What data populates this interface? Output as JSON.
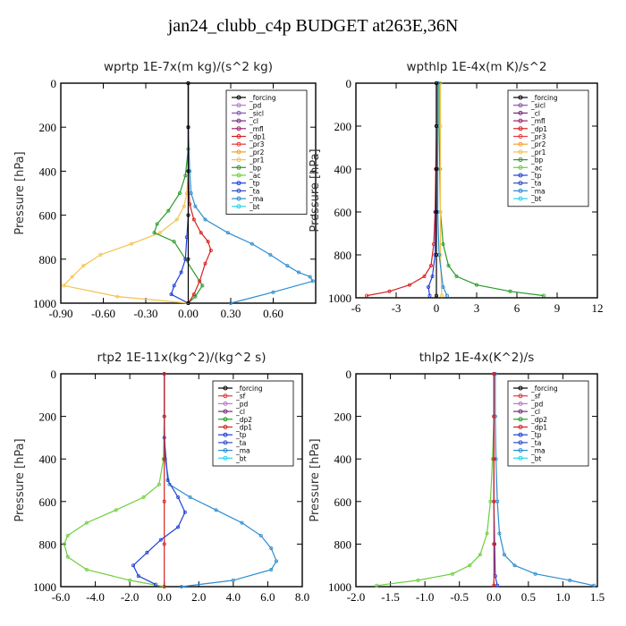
{
  "figure_title": "jan24_clubb_c4p  BUDGET at263E,36N",
  "chart_data": [
    {
      "type": "line",
      "title": "wprtp   1E-7x(m kg)/(s^2 kg)",
      "xlabel": "",
      "ylabel": "Pressure [hPa]",
      "xlim": [
        -0.9,
        0.9
      ],
      "ylim": [
        1000,
        0
      ],
      "xticks": [
        -0.9,
        -0.6,
        -0.3,
        0.0,
        0.3,
        0.6
      ],
      "xtick_labels": [
        "-0.90",
        "-0.60",
        "-0.30",
        "0.00",
        "0.30",
        "0.60"
      ],
      "yticks": [
        0,
        200,
        400,
        600,
        800,
        1000
      ],
      "legend_position": "top-right",
      "legend": [
        "_forcing",
        "_pd",
        "_sicl",
        "_cl",
        "_mfl",
        "_dp1",
        "_pr3",
        "_pr2",
        "_pr1",
        "_bp",
        "_ac",
        "_tp",
        "_ta",
        "_ma",
        "_bt"
      ],
      "series": [
        {
          "name": "_pr1",
          "color": "#f3c24b",
          "x": [
            0,
            0,
            0,
            -0.01,
            -0.03,
            -0.08,
            -0.2,
            -0.4,
            -0.62,
            -0.74,
            -0.82,
            -0.88,
            -0.5,
            0
          ],
          "y": [
            0,
            200,
            400,
            500,
            560,
            620,
            680,
            730,
            780,
            830,
            880,
            920,
            970,
            1000
          ]
        },
        {
          "name": "_ma",
          "color": "#2b8cd0",
          "x": [
            0,
            0,
            0.01,
            0.02,
            0.05,
            0.12,
            0.28,
            0.45,
            0.58,
            0.7,
            0.78,
            0.86,
            0.88,
            0.6,
            0.3
          ],
          "y": [
            0,
            200,
            400,
            500,
            560,
            620,
            680,
            730,
            780,
            830,
            860,
            880,
            900,
            950,
            1000
          ]
        },
        {
          "name": "_bp",
          "color": "#2a9a2a",
          "x": [
            0,
            0,
            0,
            -0.02,
            -0.06,
            -0.14,
            -0.22,
            -0.24,
            -0.1,
            0.1,
            0.05,
            0
          ],
          "y": [
            0,
            200,
            300,
            420,
            500,
            580,
            640,
            680,
            720,
            920,
            970,
            1000
          ]
        },
        {
          "name": "_dp1",
          "color": "#d62020",
          "x": [
            0,
            0,
            0,
            0.01,
            0.04,
            0.09,
            0.14,
            0.16,
            0.12,
            0.08,
            0.04,
            0
          ],
          "y": [
            0,
            200,
            400,
            550,
            620,
            680,
            720,
            760,
            820,
            900,
            960,
            1000
          ]
        },
        {
          "name": "_tp",
          "color": "#1f3fd6",
          "x": [
            0,
            0,
            0,
            0,
            -0.01,
            -0.02,
            -0.05,
            -0.1,
            -0.12,
            0
          ],
          "y": [
            0,
            200,
            400,
            600,
            700,
            800,
            860,
            920,
            960,
            1000
          ]
        },
        {
          "name": "_forcing",
          "color": "#000000",
          "x": [
            0,
            0,
            0,
            0,
            0,
            0
          ],
          "y": [
            0,
            200,
            400,
            600,
            800,
            1000
          ]
        }
      ]
    },
    {
      "type": "line",
      "title": "wpthlp   1E-4x(m K)/s^2",
      "xlabel": "",
      "ylabel": "Pressure [hPa]",
      "xlim": [
        -6,
        12
      ],
      "ylim": [
        1000,
        0
      ],
      "xticks": [
        -6,
        -3,
        0,
        3,
        6,
        9,
        12
      ],
      "xtick_labels": [
        "-6",
        "-3",
        "0",
        "3",
        "6",
        "9",
        "12"
      ],
      "yticks": [
        0,
        200,
        400,
        600,
        800,
        1000
      ],
      "legend_position": "top-right",
      "legend": [
        "_forcing",
        "_sicl",
        "_cl",
        "_mfl",
        "_dp1",
        "_pr3",
        "_pr2",
        "_pr1",
        "_bp",
        "_ac",
        "_tp",
        "_ta",
        "_ma",
        "_bt"
      ],
      "series": [
        {
          "name": "_bp",
          "color": "#2a9a2a",
          "x": [
            0.2,
            0.2,
            0.25,
            0.3,
            0.5,
            0.9,
            1.5,
            3,
            5.5,
            8
          ],
          "y": [
            0,
            200,
            400,
            600,
            750,
            850,
            900,
            940,
            970,
            990
          ]
        },
        {
          "name": "_dp1",
          "color": "#d62020",
          "x": [
            0,
            0,
            -0.05,
            -0.1,
            -0.2,
            -0.4,
            -0.9,
            -2,
            -3.5,
            -5.2
          ],
          "y": [
            0,
            200,
            400,
            600,
            750,
            850,
            900,
            940,
            970,
            990
          ]
        },
        {
          "name": "_tp",
          "color": "#1f3fd6",
          "x": [
            0,
            0,
            0,
            -0.05,
            -0.1,
            -0.3,
            -0.6,
            -0.5
          ],
          "y": [
            0,
            200,
            400,
            600,
            800,
            900,
            950,
            990
          ]
        },
        {
          "name": "_pr1",
          "color": "#f3c24b",
          "x": [
            0.3,
            0.3,
            0.3,
            0.3,
            0.3,
            0.4
          ],
          "y": [
            0,
            200,
            400,
            600,
            800,
            990
          ]
        },
        {
          "name": "_ma",
          "color": "#2b8cd0",
          "x": [
            0.1,
            0.1,
            0.1,
            0.1,
            0.2,
            0.5,
            0.8
          ],
          "y": [
            0,
            200,
            400,
            600,
            800,
            950,
            990
          ]
        },
        {
          "name": "_forcing",
          "color": "#000000",
          "x": [
            0,
            0,
            0,
            0,
            0,
            0
          ],
          "y": [
            0,
            200,
            400,
            600,
            800,
            990
          ]
        }
      ]
    },
    {
      "type": "line",
      "title": "rtp2   1E-11x(kg^2)/(kg^2 s)",
      "xlabel": "",
      "ylabel": "Pressure [hPa]",
      "xlim": [
        -6,
        8
      ],
      "ylim": [
        1000,
        0
      ],
      "xticks": [
        -6,
        -4,
        -2,
        0,
        2,
        4,
        6,
        8
      ],
      "xtick_labels": [
        "-6.0",
        "-4.0",
        "-2.0",
        "0.0",
        "2.0",
        "4.0",
        "6.0",
        "8.0"
      ],
      "yticks": [
        0,
        200,
        400,
        600,
        800,
        1000
      ],
      "legend_position": "top-right",
      "legend": [
        "_forcing",
        "_sf",
        "_pd",
        "_cl",
        "_dp2",
        "_dp1",
        "_tp",
        "_ta",
        "_ma",
        "_bt"
      ],
      "series": [
        {
          "name": "_dp1",
          "color": "#6ccf3c",
          "x": [
            0,
            0,
            -0.05,
            -0.3,
            -1.2,
            -2.8,
            -4.5,
            -5.6,
            -5.8,
            -5.6,
            -4.5,
            -2,
            0
          ],
          "y": [
            0,
            200,
            400,
            520,
            580,
            640,
            700,
            760,
            800,
            860,
            920,
            970,
            1000
          ]
        },
        {
          "name": "_ma",
          "color": "#2b8cd0",
          "x": [
            0,
            0,
            0.05,
            0.3,
            1.5,
            3,
            4.5,
            5.6,
            6.2,
            6.5,
            6.2,
            4,
            1
          ],
          "y": [
            0,
            200,
            400,
            520,
            580,
            640,
            700,
            760,
            820,
            880,
            920,
            970,
            1000
          ]
        },
        {
          "name": "_tp",
          "color": "#1f3fd6",
          "x": [
            0,
            0,
            0.2,
            0.8,
            1.2,
            0.8,
            -0.2,
            -1,
            -1.8,
            -1.5,
            -0.5
          ],
          "y": [
            0,
            300,
            500,
            580,
            650,
            720,
            780,
            840,
            900,
            950,
            990
          ]
        },
        {
          "name": "_forcing",
          "color": "#d62020",
          "x": [
            0,
            0,
            0,
            0,
            0,
            0
          ],
          "y": [
            0,
            200,
            400,
            600,
            800,
            1000
          ]
        }
      ]
    },
    {
      "type": "line",
      "title": "thlp2   1E-4x(K^2)/s",
      "xlabel": "",
      "ylabel": "Pressure [hPa]",
      "xlim": [
        -2,
        1.5
      ],
      "ylim": [
        1000,
        0
      ],
      "xticks": [
        -2,
        -1.5,
        -1,
        -0.5,
        0,
        0.5,
        1,
        1.5
      ],
      "xtick_labels": [
        "-2.0",
        "-1.5",
        "-1.0",
        "-0.5",
        "0.0",
        "0.5",
        "1.0",
        "1.5"
      ],
      "yticks": [
        0,
        200,
        400,
        600,
        800,
        1000
      ],
      "legend_position": "top-right",
      "legend": [
        "_forcing",
        "_sf",
        "_pd",
        "_cl",
        "_dp2",
        "_dp1",
        "_tp",
        "_ta",
        "_ma",
        "_bt"
      ],
      "series": [
        {
          "name": "_dp1",
          "color": "#6ccf3c",
          "x": [
            0,
            0,
            -0.02,
            -0.05,
            -0.1,
            -0.2,
            -0.35,
            -0.6,
            -1.1,
            -1.7
          ],
          "y": [
            0,
            200,
            400,
            600,
            750,
            850,
            900,
            940,
            970,
            995
          ]
        },
        {
          "name": "_ma",
          "color": "#2b8cd0",
          "x": [
            0.02,
            0.02,
            0.03,
            0.05,
            0.08,
            0.15,
            0.3,
            0.6,
            1.1,
            1.45
          ],
          "y": [
            0,
            200,
            400,
            600,
            750,
            850,
            900,
            940,
            970,
            995
          ]
        },
        {
          "name": "_tp",
          "color": "#1f3fd6",
          "x": [
            0,
            0,
            0,
            0,
            0.01,
            0.02,
            0.05
          ],
          "y": [
            0,
            200,
            400,
            600,
            800,
            950,
            995
          ]
        },
        {
          "name": "_forcing",
          "color": "#d62020",
          "x": [
            0,
            0,
            0,
            0,
            0,
            0
          ],
          "y": [
            0,
            200,
            400,
            600,
            800,
            995
          ]
        }
      ]
    }
  ],
  "legend_colors": {
    "_forcing": "#000000",
    "_pd": "#b57cc9",
    "_sicl": "#8a55b5",
    "_cl": "#7a2a7a",
    "_mfl": "#a0226e",
    "_dp1": "#d62020",
    "_pr3": "#e8383d",
    "_pr2": "#f3a02a",
    "_pr1": "#f3c24b",
    "_bp": "#2a9a2a",
    "_ac": "#6ccf3c",
    "_tp": "#1f3fd6",
    "_ta": "#3050c0",
    "_ma": "#2b8cd0",
    "_bt": "#29d4e8",
    "_sf": "#e8383d",
    "_dp2": "#2a9a2a"
  }
}
